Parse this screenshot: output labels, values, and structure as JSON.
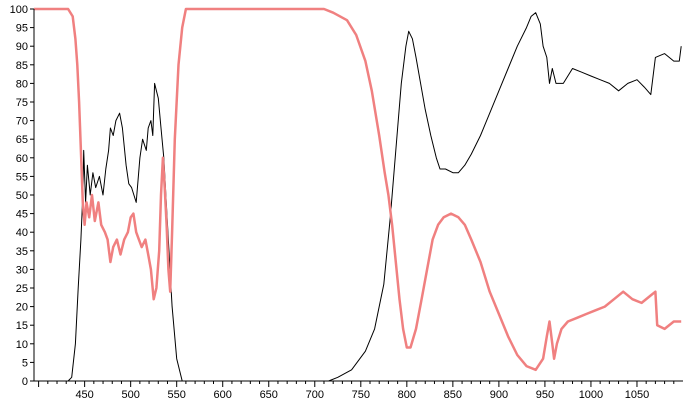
{
  "chart_data": {
    "type": "line",
    "title": "",
    "xlabel": "",
    "ylabel": "",
    "xlim": [
      395,
      1100
    ],
    "ylim": [
      0,
      100
    ],
    "x_ticks": [
      450,
      500,
      550,
      600,
      650,
      700,
      750,
      800,
      850,
      900,
      950,
      1000,
      1050
    ],
    "y_ticks": [
      0,
      5,
      10,
      15,
      20,
      25,
      30,
      35,
      40,
      45,
      50,
      55,
      60,
      65,
      70,
      75,
      80,
      85,
      90,
      95,
      100
    ],
    "grid": false,
    "legend": "none",
    "series": [
      {
        "color": "#000000",
        "points": [
          [
            395,
            0
          ],
          [
            432,
            0
          ],
          [
            436,
            1
          ],
          [
            440,
            10
          ],
          [
            443,
            25
          ],
          [
            446,
            38
          ],
          [
            448,
            50
          ],
          [
            449,
            62
          ],
          [
            451,
            48
          ],
          [
            453,
            58
          ],
          [
            456,
            50
          ],
          [
            459,
            56
          ],
          [
            462,
            52
          ],
          [
            466,
            55
          ],
          [
            470,
            50
          ],
          [
            473,
            57
          ],
          [
            476,
            62
          ],
          [
            478,
            68
          ],
          [
            481,
            66
          ],
          [
            484,
            70
          ],
          [
            488,
            72
          ],
          [
            491,
            68
          ],
          [
            495,
            58
          ],
          [
            498,
            53
          ],
          [
            501,
            52
          ],
          [
            506,
            48
          ],
          [
            510,
            60
          ],
          [
            513,
            65
          ],
          [
            517,
            62
          ],
          [
            519,
            68
          ],
          [
            522,
            70
          ],
          [
            524,
            66
          ],
          [
            526,
            80
          ],
          [
            528,
            78
          ],
          [
            530,
            76
          ],
          [
            533,
            68
          ],
          [
            536,
            60
          ],
          [
            540,
            42
          ],
          [
            545,
            20
          ],
          [
            550,
            6
          ],
          [
            556,
            0
          ],
          [
            715,
            0
          ],
          [
            725,
            1
          ],
          [
            740,
            3
          ],
          [
            755,
            8
          ],
          [
            765,
            14
          ],
          [
            775,
            26
          ],
          [
            782,
            44
          ],
          [
            788,
            62
          ],
          [
            794,
            80
          ],
          [
            799,
            90
          ],
          [
            802,
            94
          ],
          [
            806,
            92
          ],
          [
            810,
            87
          ],
          [
            815,
            80
          ],
          [
            820,
            73
          ],
          [
            826,
            66
          ],
          [
            832,
            60
          ],
          [
            836,
            57
          ],
          [
            842,
            57
          ],
          [
            850,
            56
          ],
          [
            856,
            56
          ],
          [
            863,
            58
          ],
          [
            870,
            61
          ],
          [
            880,
            66
          ],
          [
            890,
            72
          ],
          [
            900,
            78
          ],
          [
            910,
            84
          ],
          [
            920,
            90
          ],
          [
            930,
            95
          ],
          [
            935,
            98
          ],
          [
            940,
            99
          ],
          [
            945,
            96
          ],
          [
            948,
            90
          ],
          [
            952,
            87
          ],
          [
            955,
            80
          ],
          [
            958,
            84
          ],
          [
            962,
            80
          ],
          [
            970,
            80
          ],
          [
            980,
            84
          ],
          [
            990,
            83
          ],
          [
            1000,
            82
          ],
          [
            1010,
            81
          ],
          [
            1020,
            80
          ],
          [
            1030,
            78
          ],
          [
            1040,
            80
          ],
          [
            1050,
            81
          ],
          [
            1058,
            79
          ],
          [
            1065,
            77
          ],
          [
            1070,
            87
          ],
          [
            1080,
            88
          ],
          [
            1090,
            86
          ],
          [
            1096,
            86
          ],
          [
            1098,
            90
          ]
        ]
      },
      {
        "color": "#f08080",
        "points": [
          [
            395,
            100
          ],
          [
            432,
            100
          ],
          [
            437,
            98
          ],
          [
            440,
            92
          ],
          [
            442,
            85
          ],
          [
            444,
            75
          ],
          [
            446,
            62
          ],
          [
            448,
            48
          ],
          [
            450,
            42
          ],
          [
            452,
            48
          ],
          [
            455,
            44
          ],
          [
            458,
            50
          ],
          [
            461,
            43
          ],
          [
            465,
            48
          ],
          [
            468,
            42
          ],
          [
            472,
            40
          ],
          [
            475,
            38
          ],
          [
            478,
            32
          ],
          [
            481,
            36
          ],
          [
            485,
            38
          ],
          [
            489,
            34
          ],
          [
            493,
            38
          ],
          [
            497,
            40
          ],
          [
            500,
            44
          ],
          [
            503,
            45
          ],
          [
            506,
            40
          ],
          [
            509,
            38
          ],
          [
            512,
            36
          ],
          [
            516,
            38
          ],
          [
            519,
            34
          ],
          [
            522,
            30
          ],
          [
            525,
            22
          ],
          [
            528,
            25
          ],
          [
            531,
            35
          ],
          [
            533,
            50
          ],
          [
            535,
            60
          ],
          [
            537,
            52
          ],
          [
            539,
            42
          ],
          [
            541,
            30
          ],
          [
            543,
            24
          ],
          [
            545,
            40
          ],
          [
            548,
            65
          ],
          [
            552,
            85
          ],
          [
            556,
            95
          ],
          [
            560,
            100
          ],
          [
            710,
            100
          ],
          [
            720,
            99
          ],
          [
            735,
            97
          ],
          [
            745,
            93
          ],
          [
            755,
            86
          ],
          [
            762,
            78
          ],
          [
            770,
            66
          ],
          [
            776,
            56
          ],
          [
            780,
            50
          ],
          [
            784,
            42
          ],
          [
            788,
            32
          ],
          [
            792,
            22
          ],
          [
            796,
            14
          ],
          [
            800,
            9
          ],
          [
            804,
            9
          ],
          [
            810,
            14
          ],
          [
            816,
            22
          ],
          [
            822,
            30
          ],
          [
            828,
            38
          ],
          [
            834,
            42
          ],
          [
            840,
            44
          ],
          [
            848,
            45
          ],
          [
            856,
            44
          ],
          [
            863,
            42
          ],
          [
            870,
            38
          ],
          [
            880,
            32
          ],
          [
            890,
            24
          ],
          [
            900,
            18
          ],
          [
            910,
            12
          ],
          [
            920,
            7
          ],
          [
            930,
            4
          ],
          [
            940,
            3
          ],
          [
            948,
            6
          ],
          [
            952,
            12
          ],
          [
            955,
            16
          ],
          [
            958,
            10
          ],
          [
            960,
            6
          ],
          [
            963,
            10
          ],
          [
            968,
            14
          ],
          [
            975,
            16
          ],
          [
            985,
            17
          ],
          [
            995,
            18
          ],
          [
            1005,
            19
          ],
          [
            1015,
            20
          ],
          [
            1025,
            22
          ],
          [
            1035,
            24
          ],
          [
            1045,
            22
          ],
          [
            1055,
            21
          ],
          [
            1065,
            23
          ],
          [
            1070,
            24
          ],
          [
            1072,
            15
          ],
          [
            1080,
            14
          ],
          [
            1090,
            16
          ],
          [
            1098,
            16
          ]
        ]
      }
    ]
  }
}
